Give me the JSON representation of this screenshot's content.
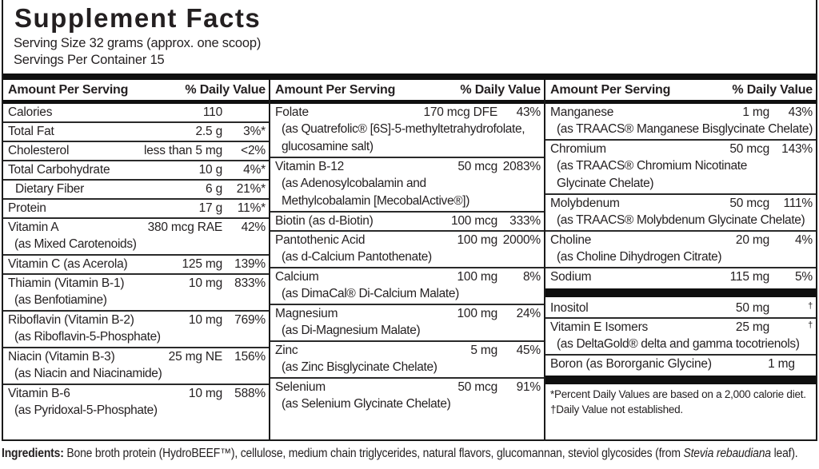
{
  "header": {
    "title": "Supplement Facts",
    "serving_size": "Serving Size 32 grams (approx. one scoop)",
    "servings_per_container": "Servings Per Container 15"
  },
  "table": {
    "column_header_left": "Amount Per Serving",
    "column_header_right": "% Daily Value",
    "columns": [
      {
        "rows": [
          {
            "name": "Calories",
            "amount": "110",
            "dv": ""
          },
          {
            "name": "Total Fat",
            "amount": "2.5 g",
            "dv": "3%*"
          },
          {
            "name": "Cholesterol",
            "amount": "less than 5 mg",
            "dv": "<2%"
          },
          {
            "name": "Total Carbohydrate",
            "amount": "10 g",
            "dv": "4%*"
          },
          {
            "name": "Dietary Fiber",
            "amount": "6 g",
            "dv": "21%*",
            "indent": true
          },
          {
            "name": "Protein",
            "amount": "17 g",
            "dv": "11%*"
          },
          {
            "name": "Vitamin A",
            "amount": "380 mcg RAE",
            "dv": "42%",
            "sub": [
              "(as Mixed Carotenoids)"
            ]
          },
          {
            "name": "Vitamin C (as Acerola)",
            "amount": "125 mg",
            "dv": "139%"
          },
          {
            "name": "Thiamin (Vitamin B-1)",
            "amount": "10 mg",
            "dv": "833%",
            "sub": [
              "(as Benfotiamine)"
            ]
          },
          {
            "name": "Riboflavin (Vitamin B-2)",
            "amount": "10 mg",
            "dv": "769%",
            "sub": [
              "(as Riboflavin-5-Phosphate)"
            ]
          },
          {
            "name": "Niacin (Vitamin B-3)",
            "amount": "25 mg NE",
            "dv": "156%",
            "sub": [
              "(as Niacin and Niacinamide)"
            ]
          },
          {
            "name": "Vitamin B-6",
            "amount": "10 mg",
            "dv": "588%",
            "sub": [
              "(as Pyridoxal-5-Phosphate)"
            ]
          }
        ]
      },
      {
        "rows": [
          {
            "name": "Folate",
            "amount": "170 mcg DFE",
            "dv": "43%",
            "sub": [
              "(as Quatrefolic® [6S]-5-methyltetrahydrofolate,",
              "glucosamine salt)"
            ]
          },
          {
            "name": "Vitamin B-12",
            "amount": "50 mcg",
            "dv": "2083%",
            "sub": [
              "(as Adenosylcobalamin and",
              "Methylcobalamin [MecobalActive®])"
            ]
          },
          {
            "name": "Biotin (as d-Biotin)",
            "amount": "100 mcg",
            "dv": "333%"
          },
          {
            "name": "Pantothenic Acid",
            "amount": "100 mg",
            "dv": "2000%",
            "sub": [
              "(as d-Calcium Pantothenate)"
            ]
          },
          {
            "name": "Calcium",
            "amount": "100 mg",
            "dv": "8%",
            "sub": [
              "(as DimaCal® Di-Calcium Malate)"
            ]
          },
          {
            "name": "Magnesium",
            "amount": "100 mg",
            "dv": "24%",
            "sub": [
              "(as Di-Magnesium Malate)"
            ]
          },
          {
            "name": "Zinc",
            "amount": "5 mg",
            "dv": "45%",
            "sub": [
              "(as Zinc Bisglycinate Chelate)"
            ]
          },
          {
            "name": "Selenium",
            "amount": "50 mcg",
            "dv": "91%",
            "sub": [
              "(as Selenium Glycinate Chelate)"
            ]
          }
        ]
      },
      {
        "rows": [
          {
            "name": "Manganese",
            "amount": "1 mg",
            "dv": "43%",
            "sub": [
              "(as TRAACS® Manganese Bisglycinate Chelate)"
            ]
          },
          {
            "name": "Chromium",
            "amount": "50 mcg",
            "dv": "143%",
            "sub": [
              "(as TRAACS® Chromium Nicotinate",
              "Glycinate Chelate)"
            ]
          },
          {
            "name": "Molybdenum",
            "amount": "50 mcg",
            "dv": "111%",
            "sub": [
              "(as TRAACS® Molybdenum Glycinate Chelate)"
            ]
          },
          {
            "name": "Choline",
            "amount": "20 mg",
            "dv": "4%",
            "sub": [
              "(as Choline Dihydrogen Citrate)"
            ]
          },
          {
            "name": "Sodium",
            "amount": "115 mg",
            "dv": "5%",
            "bar_after": true
          },
          {
            "name": "Inositol",
            "amount": "50 mg",
            "dv": "†"
          },
          {
            "name": "Vitamin E Isomers",
            "amount": "25 mg",
            "dv": "†",
            "sub": [
              "(as DeltaGold® delta and gamma tocotrienols)"
            ]
          },
          {
            "name": "Boron (as Bororganic Glycine)",
            "amount": "1 mg",
            "dv": "†",
            "bar_after": true
          }
        ],
        "footnotes": [
          "*Percent Daily Values are based on a 2,000 calorie diet.",
          "†Daily Value not established."
        ]
      }
    ]
  },
  "ingredients": {
    "label": "Ingredients:",
    "text_before_italic": " Bone broth protein (HydroBEEF™), cellulose, medium chain triglycerides, natural flavors, glucomannan, steviol glycosides (from ",
    "italic": "Stevia rebaudiana",
    "text_after_italic": " leaf)."
  },
  "colors": {
    "text": "#231f20",
    "bar": "#0f0f0f",
    "background": "#ffffff"
  }
}
